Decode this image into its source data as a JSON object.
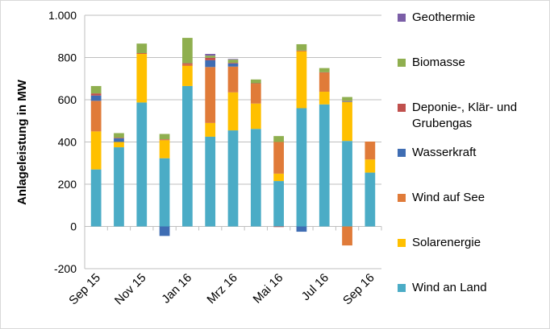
{
  "chart_data": {
    "type": "stacked-bar",
    "y_label": "Anlageleistung in MW",
    "categories": [
      "Sep 15",
      null,
      "Nov 15",
      null,
      "Jan 16",
      null,
      "Mrz 16",
      null,
      "Mai 16",
      null,
      "Jul 16",
      null,
      "Sep 16"
    ],
    "ylim": [
      -200,
      1000
    ],
    "yticks": [
      -200,
      0,
      200,
      400,
      600,
      800,
      {
        "value": 1000,
        "label": "1.000"
      }
    ],
    "grid": true,
    "series": [
      {
        "name": "Wind an Land",
        "color": "#4bacc6",
        "values": [
          270,
          375,
          587,
          323,
          665,
          425,
          455,
          462,
          215,
          560,
          578,
          405,
          255
        ]
      },
      {
        "name": "Solarenergie",
        "color": "#ffc000",
        "values": [
          180,
          25,
          230,
          85,
          95,
          65,
          180,
          120,
          35,
          270,
          60,
          185,
          62
        ]
      },
      {
        "name": "Wind auf See",
        "color": "#e07b39",
        "values": [
          145,
          0,
          2,
          3,
          8,
          265,
          122,
          94,
          150,
          0,
          90,
          -90,
          85
        ]
      },
      {
        "name": "Wasserkraft",
        "color": "#3f6db3",
        "values": [
          25,
          17,
          0,
          -45,
          0,
          32,
          15,
          0,
          0,
          -25,
          0,
          3,
          0
        ]
      },
      {
        "name": "Deponie-, Klär- und Grubengas",
        "color": "#c0504d",
        "values": [
          10,
          3,
          2,
          2,
          5,
          12,
          3,
          2,
          -3,
          3,
          2,
          2,
          0
        ]
      },
      {
        "name": "Biomasse",
        "color": "#8faf4f",
        "values": [
          35,
          22,
          45,
          25,
          120,
          10,
          15,
          18,
          28,
          30,
          20,
          18,
          0
        ]
      },
      {
        "name": "Geothermie",
        "color": "#7b5ea7",
        "values": [
          0,
          0,
          0,
          0,
          0,
          8,
          3,
          0,
          0,
          0,
          0,
          0,
          0
        ]
      }
    ]
  }
}
